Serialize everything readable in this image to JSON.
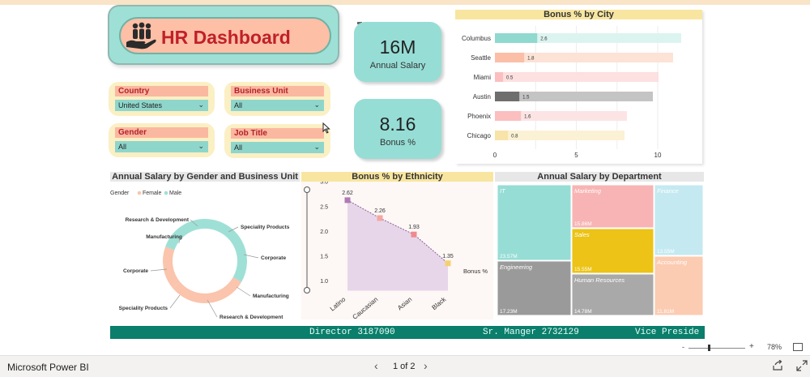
{
  "title": "HR Dashboard",
  "slicers": {
    "country": {
      "label": "Country",
      "value": "United States"
    },
    "business_unit": {
      "label": "Business Unit",
      "value": "All"
    },
    "gender": {
      "label": "Gender",
      "value": "All"
    },
    "job_title": {
      "label": "Job Title",
      "value": "All"
    }
  },
  "kpis": {
    "annual_salary": {
      "value": "16M",
      "caption": "Annual Salary"
    },
    "bonus": {
      "value": "8.16",
      "caption": "Bonus %"
    }
  },
  "chart_data": [
    {
      "type": "bar",
      "title": "Bonus % by City",
      "categories": [
        "Columbus",
        "Seattle",
        "Miami",
        "Austin",
        "Phoenix",
        "Chicago"
      ],
      "values": [
        2.6,
        1.8,
        0.5,
        1.5,
        1.6,
        0.8
      ],
      "value_labels": [
        "2.6",
        "1.8",
        "0.5",
        "1.5",
        "1.6",
        "0.8"
      ],
      "xlim": [
        0,
        10
      ],
      "xticks": [
        "0",
        "5",
        "10"
      ],
      "colors": [
        "#8fd9cf",
        "#fbbfa8",
        "#fbbfbf",
        "#6e6e6e",
        "#fbbfbf",
        "#f8e3a8"
      ],
      "bg_colors": [
        "#dcf4f0",
        "#fde2d6",
        "#fde0e0",
        "#c4c4c4",
        "#fde4e4",
        "#fbf1d4"
      ]
    },
    {
      "type": "pie",
      "title": "Annual Salary by Gender and Business Unit",
      "legend_title": "Gender",
      "series": [
        {
          "name": "Female",
          "color": "#fbc4ac"
        },
        {
          "name": "Male",
          "color": "#9fe0d6"
        }
      ],
      "labels": [
        "Speciality Products",
        "Corporate",
        "Manufacturing",
        "Research & Development",
        "Speciality Products",
        "Corporate",
        "Manufacturing",
        "Research & Development"
      ]
    },
    {
      "type": "area",
      "title": "Bonus % by Ethnicity",
      "categories": [
        "Latino",
        "Caucasian",
        "Asian",
        "Black"
      ],
      "values": [
        2.62,
        2.26,
        1.93,
        1.35
      ],
      "value_labels": [
        "2.62",
        "2.26",
        "1.93",
        "1.35"
      ],
      "ylim": [
        0.8,
        3.0
      ],
      "yticks": [
        "3.0",
        "2.5",
        "2.0",
        "1.5",
        "1.0"
      ],
      "legend": "Bonus %",
      "marker_colors": [
        "#b07ab5",
        "#f4a7a0",
        "#f08a8e",
        "#f5d070"
      ]
    },
    {
      "type": "treemap",
      "title": "Annual Salary by Department",
      "items": [
        {
          "name": "IT",
          "value": "23.57M",
          "color": "#96ddd5"
        },
        {
          "name": "Engineering",
          "value": "17.23M",
          "color": "#9a9a9a"
        },
        {
          "name": "Marketing",
          "value": "15.86M",
          "color": "#f8b4b4"
        },
        {
          "name": "Sales",
          "value": "15.55M",
          "color": "#ecc316"
        },
        {
          "name": "Human Resources",
          "value": "14.78M",
          "color": "#a9a9a9"
        },
        {
          "name": "Finance",
          "value": "13.55M",
          "color": "#c4e9f1"
        },
        {
          "name": "Accounting",
          "value": "11.81M",
          "color": "#fbcbb2"
        }
      ]
    }
  ],
  "ticker": [
    "Director 3187090",
    "Sr. Manger 2732129",
    "Vice Preside"
  ],
  "zoom": {
    "minus": "-",
    "plus": "+",
    "percent": "78%"
  },
  "statusbar": {
    "app_name": "Microsoft Power BI",
    "page": "1 of 2"
  }
}
